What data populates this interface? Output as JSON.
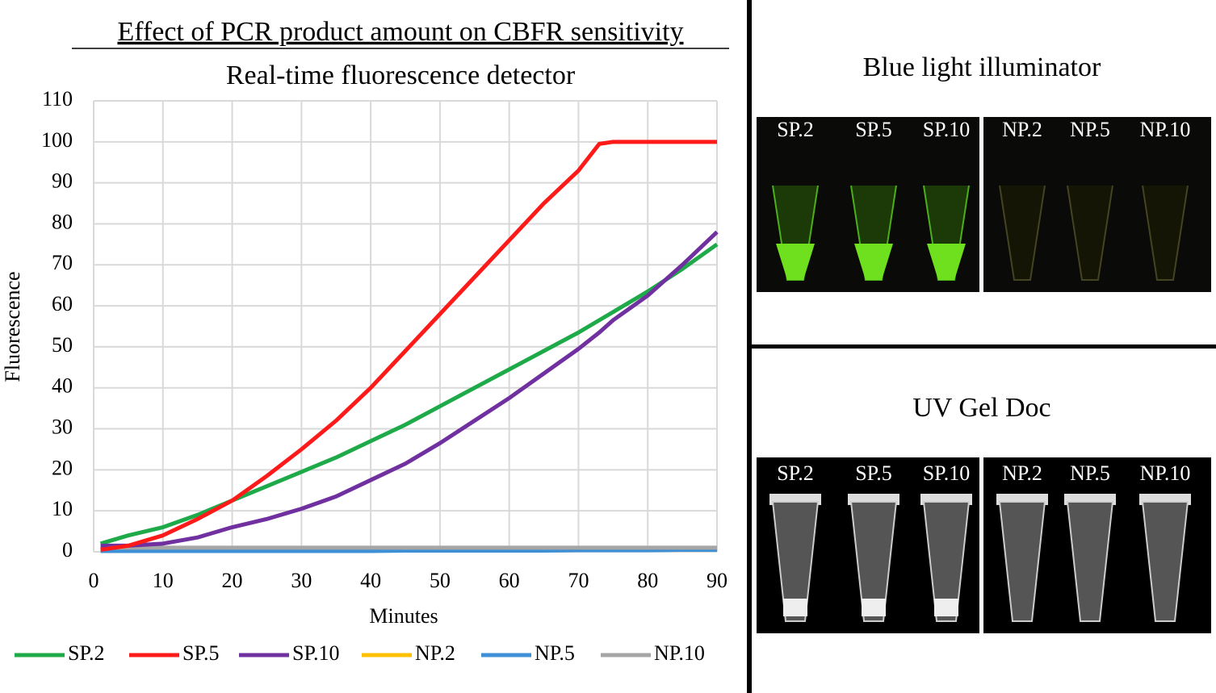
{
  "chart_data": {
    "type": "line",
    "title": "Effect of PCR product amount on CBFR sensitivity",
    "subtitle": "Real-time fluorescence detector",
    "x_label": "Minutes",
    "y_label": "Fluorescence",
    "x": [
      1,
      5,
      10,
      15,
      20,
      25,
      30,
      35,
      40,
      45,
      50,
      55,
      60,
      65,
      70,
      73,
      75,
      80,
      85,
      90
    ],
    "series": [
      {
        "name": "SP.2",
        "color": "#1faa4a",
        "values": [
          2,
          4,
          6,
          9,
          12.5,
          16,
          19.5,
          23,
          27,
          31,
          35.5,
          40,
          44.5,
          49,
          53.5,
          56.5,
          58.5,
          63.5,
          69,
          75
        ]
      },
      {
        "name": "SP.5",
        "color": "#ff1a1a",
        "values": [
          0.5,
          1.5,
          4,
          8,
          12.5,
          18.5,
          25,
          32,
          40,
          49,
          58,
          67,
          76,
          85,
          93,
          99.5,
          100,
          100,
          100,
          100
        ]
      },
      {
        "name": "SP.10",
        "color": "#7030a0",
        "values": [
          1.5,
          1.5,
          2,
          3.5,
          6,
          8,
          10.5,
          13.5,
          17.5,
          21.5,
          26.5,
          32,
          37.5,
          43.5,
          49.5,
          53.5,
          56.5,
          62.5,
          70,
          78
        ]
      },
      {
        "name": "NP.2",
        "color": "#ffc000",
        "values": [
          0.5,
          0.5,
          0.5,
          0.5,
          0.5,
          0.5,
          0.5,
          0.5,
          0.5,
          0.5,
          0.5,
          0.5,
          0.5,
          0.5,
          0.5,
          0.5,
          0.5,
          0.5,
          0.5,
          0.5
        ]
      },
      {
        "name": "NP.5",
        "color": "#3d8fd6",
        "values": [
          0.2,
          0.2,
          0.2,
          0.2,
          0.2,
          0.2,
          0.2,
          0.2,
          0.2,
          0.3,
          0.3,
          0.3,
          0.3,
          0.3,
          0.4,
          0.4,
          0.4,
          0.4,
          0.5,
          0.5
        ]
      },
      {
        "name": "NP.10",
        "color": "#a6a6a6",
        "values": [
          1,
          1,
          1,
          1,
          1,
          1,
          1,
          1,
          1,
          1,
          1,
          1,
          1,
          1,
          1,
          1,
          1,
          1,
          1,
          1
        ]
      }
    ],
    "xlim": [
      0,
      90
    ],
    "ylim": [
      0,
      110
    ],
    "xticks": [
      0,
      10,
      20,
      30,
      40,
      50,
      60,
      70,
      80,
      90
    ],
    "yticks": [
      0,
      10,
      20,
      30,
      40,
      50,
      60,
      70,
      80,
      90,
      100,
      110
    ],
    "grid": true,
    "legend": "bottom"
  },
  "panels": [
    {
      "title": "Blue light illuminator",
      "labels": [
        "SP.2",
        "SP.5",
        "SP.10",
        "NP.2",
        "NP.5",
        "NP.10"
      ]
    },
    {
      "title": "UV Gel Doc",
      "labels": [
        "SP.2",
        "SP.5",
        "SP.10",
        "NP.2",
        "NP.5",
        "NP.10"
      ]
    }
  ]
}
